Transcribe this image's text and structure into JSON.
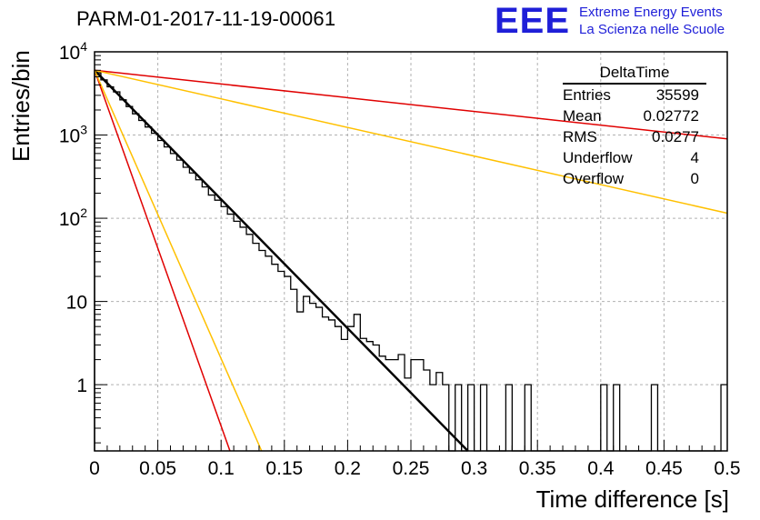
{
  "title": "PARM-01-2017-11-19-00061",
  "logo": {
    "mark": "EEE",
    "line1": "Extreme Energy Events",
    "line2": "La Scienza nelle Scuole",
    "color": "#1f1fd8"
  },
  "stats": {
    "name": "DeltaTime",
    "rows": [
      {
        "label": "Entries",
        "value": "35599"
      },
      {
        "label": "Mean",
        "value": "0.02772"
      },
      {
        "label": "RMS",
        "value": "0.0277"
      },
      {
        "label": "Underflow",
        "value": "4"
      },
      {
        "label": "Overflow",
        "value": "0"
      }
    ]
  },
  "chart_data": {
    "type": "line",
    "xlabel": "Time difference [s]",
    "ylabel": "Entries/bin",
    "xlim": [
      0,
      0.5
    ],
    "ylim": [
      0.16,
      10000
    ],
    "ylog": true,
    "grid": true,
    "x_ticks": [
      "0",
      "0.05",
      "0.1",
      "0.15",
      "0.2",
      "0.25",
      "0.3",
      "0.35",
      "0.4",
      "0.45",
      "0.5"
    ],
    "y_ticks": [
      {
        "value": 1,
        "label": "1"
      },
      {
        "value": 10,
        "label": "10"
      },
      {
        "value": 100,
        "label": "10",
        "exp": "2"
      },
      {
        "value": 1000,
        "label": "10",
        "exp": "3"
      },
      {
        "value": 10000,
        "label": "10",
        "exp": "4"
      }
    ],
    "histogram": {
      "name": "DeltaTime",
      "color": "#000000",
      "bin_width": 0.005,
      "x_start": 0,
      "values": [
        5600,
        4600,
        3800,
        3300,
        2650,
        2200,
        1800,
        1500,
        1250,
        1050,
        860,
        720,
        600,
        500,
        410,
        350,
        290,
        238,
        190,
        165,
        138,
        112,
        92,
        78,
        64,
        50,
        41,
        35,
        28,
        23,
        20,
        14,
        7.5,
        11.5,
        9.5,
        8.5,
        6.5,
        6.0,
        5.0,
        3.5,
        5.0,
        7.0,
        3.6,
        3.3,
        3.0,
        2.2,
        2.0,
        2.0,
        2.3,
        1.2,
        2.0,
        2.0,
        1.5,
        1.0,
        1.4,
        1.0,
        0.1,
        1.0,
        0.1,
        1.0,
        0.1,
        1.0,
        0.1,
        0.1,
        0.1,
        1.0,
        0.1,
        0.1,
        1.0,
        0.1,
        0.1,
        0.1,
        0.1,
        0.1,
        0.1,
        0.1,
        0.1,
        0.1,
        0.1,
        0.1,
        1.0,
        0.1,
        1.0,
        0.1,
        0.1,
        0.1,
        0.1,
        0.1,
        1.0,
        0.1,
        0.1,
        0.1,
        0.1,
        0.1,
        0.1,
        0.1,
        0.1,
        0.1,
        0.1,
        1.0,
        0.1
      ]
    },
    "fits": [
      {
        "color": "#000000",
        "x": [
          0,
          0.295
        ],
        "y": [
          6000,
          0.16
        ],
        "width": 2.5
      },
      {
        "color": "#e00000",
        "x": [
          0,
          0.5
        ],
        "y": [
          6000,
          900
        ],
        "width": 1.5
      },
      {
        "color": "#ffc000",
        "x": [
          0,
          0.5
        ],
        "y": [
          6000,
          115
        ],
        "width": 1.5
      },
      {
        "color": "#e00000",
        "x": [
          0,
          0.107
        ],
        "y": [
          6000,
          0.16
        ],
        "width": 1.5
      },
      {
        "color": "#ffc000",
        "x": [
          0,
          0.132
        ],
        "y": [
          6000,
          0.16
        ],
        "width": 1.5
      }
    ]
  }
}
